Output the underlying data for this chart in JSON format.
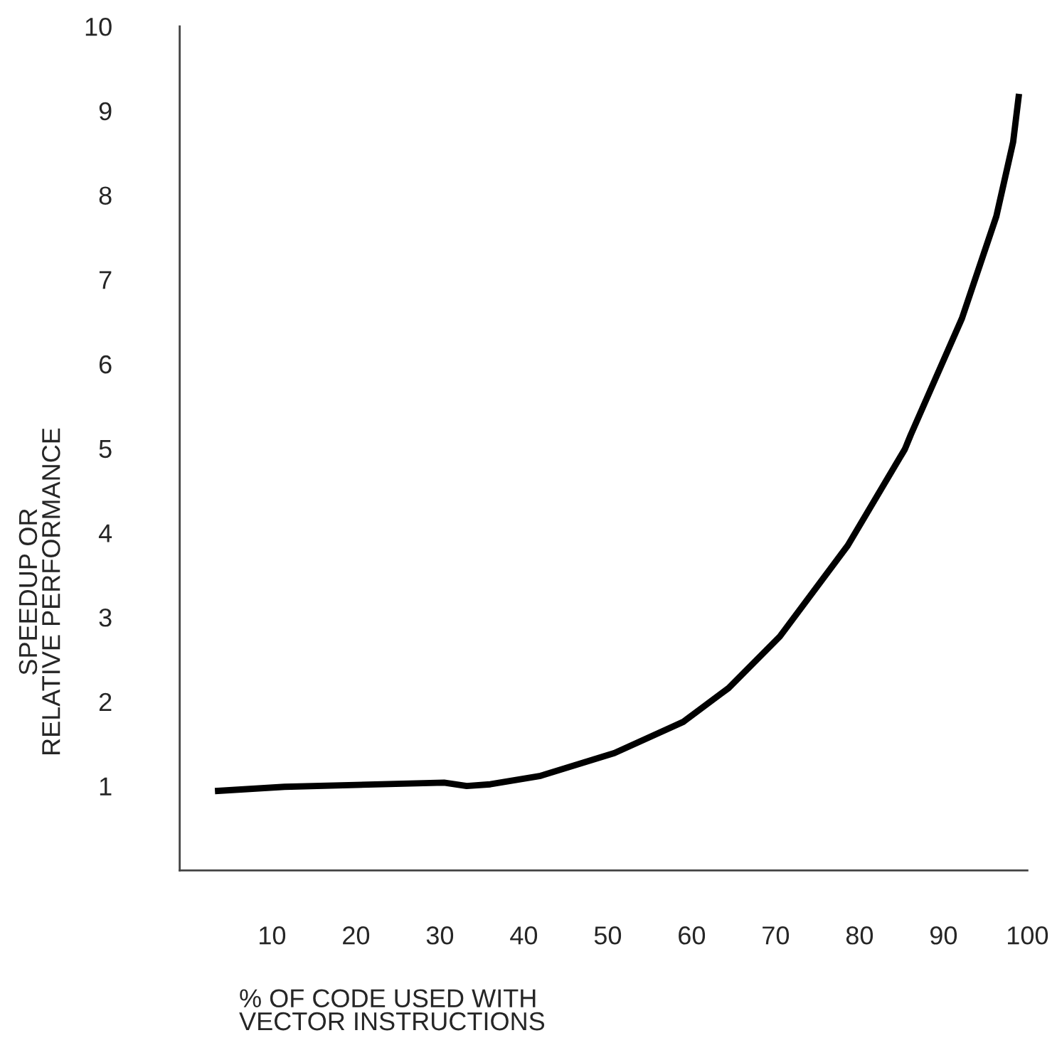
{
  "chart_data": {
    "type": "line",
    "xlabel": "% OF CODE USED WITH\nVECTOR INSTRUCTIONS",
    "ylabel": "SPEEDUP OR\nRELATIVE PERFORMANCE",
    "series": [
      {
        "color": "#000000",
        "x": [
          3.2,
          11.5,
          30.5,
          33.2,
          36,
          42,
          50.8,
          59,
          64.4,
          70.5,
          78.6,
          85.4,
          86.1,
          92.2,
          96.3,
          98.3,
          99
        ],
        "values": [
          0.94,
          0.99,
          1.04,
          1.0,
          1.02,
          1.12,
          1.39,
          1.76,
          2.16,
          2.77,
          3.85,
          4.99,
          5.16,
          6.54,
          7.75,
          8.63,
          9.2
        ]
      }
    ],
    "xlim": [
      -1,
      100
    ],
    "ylim": [
      0,
      10
    ],
    "xticks": [
      10,
      20,
      30,
      40,
      50,
      60,
      70,
      80,
      90,
      100
    ],
    "yticks": [
      1,
      2,
      3,
      4,
      5,
      6,
      7,
      8,
      9,
      10
    ],
    "grid": false,
    "legend": false,
    "line_style": "solid",
    "marker": "none"
  }
}
